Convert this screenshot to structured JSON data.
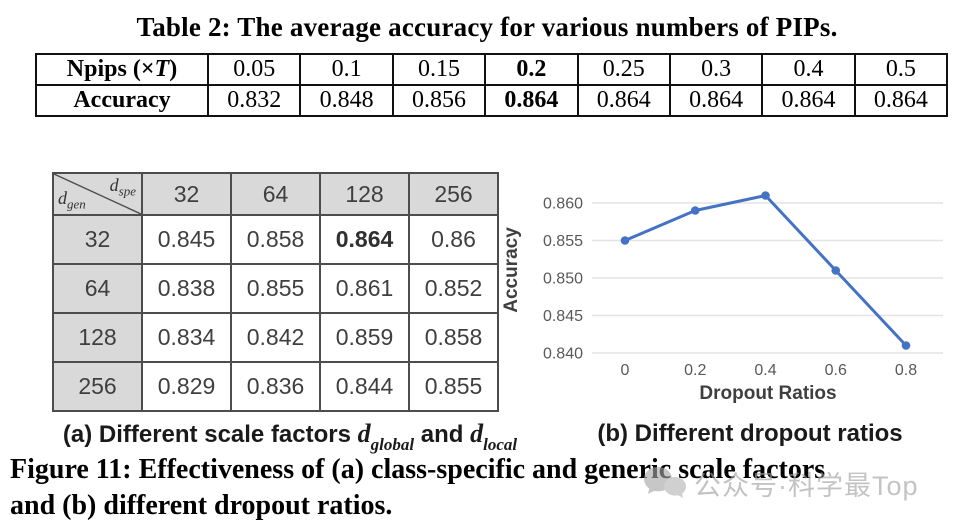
{
  "table2": {
    "title": "Table 2: The average accuracy for various numbers of PIPs.",
    "header_row": {
      "label_name": "Npips",
      "label_open": " (×",
      "label_var": "T",
      "label_close": ")",
      "values": [
        "0.05",
        "0.1",
        "0.15",
        "0.2",
        "0.25",
        "0.3",
        "0.4",
        "0.5"
      ]
    },
    "accuracy_row": {
      "label": "Accuracy",
      "values": [
        "0.832",
        "0.848",
        "0.856",
        "0.864",
        "0.864",
        "0.864",
        "0.864",
        "0.864"
      ]
    },
    "bold_column_index": 3
  },
  "scale_table": {
    "corner": {
      "top_var": "d",
      "top_sub": "spe",
      "bottom_var": "d",
      "bottom_sub": "gen"
    },
    "col_headers": [
      "32",
      "64",
      "128",
      "256"
    ],
    "rows": [
      {
        "header": "32",
        "values": [
          "0.845",
          "0.858",
          "0.864",
          "0.86"
        ]
      },
      {
        "header": "64",
        "values": [
          "0.838",
          "0.855",
          "0.861",
          "0.852"
        ]
      },
      {
        "header": "128",
        "values": [
          "0.834",
          "0.842",
          "0.859",
          "0.858"
        ]
      },
      {
        "header": "256",
        "values": [
          "0.829",
          "0.836",
          "0.844",
          "0.855"
        ]
      }
    ],
    "bold_cell": {
      "row": 0,
      "col": 2,
      "value": "0.864"
    },
    "header_bg": "#d9d9d9"
  },
  "chart_data": {
    "type": "line",
    "x": [
      0,
      0.2,
      0.4,
      0.6,
      0.8
    ],
    "series": [
      {
        "name": "Accuracy",
        "values": [
          0.855,
          0.859,
          0.861,
          0.851,
          0.841
        ]
      }
    ],
    "xlabel": "Dropout Ratios",
    "ylabel": "Accuracy",
    "xtick_labels": [
      "0",
      "0.2",
      "0.4",
      "0.6",
      "0.8"
    ],
    "yticks": [
      0.86,
      0.855,
      0.85,
      0.845,
      0.84
    ],
    "ytick_labels": [
      "0.860",
      "0.855",
      "0.850",
      "0.845",
      "0.840"
    ],
    "xlim": [
      0,
      0.8
    ],
    "ylim": [
      0.84,
      0.86
    ],
    "grid": "horizontal",
    "legend": "none",
    "line_color": "#4472C4",
    "gridline_color": "#e4e4e4"
  },
  "captions": {
    "a": {
      "prefix": "(a) Different scale factors ",
      "var1": "d",
      "sub1": "global",
      "mid": " and ",
      "var2": "d",
      "sub2": "local"
    },
    "b": "(b) Different dropout ratios"
  },
  "figure_caption": {
    "line1": "Figure 11: Effectiveness of (a) class-specific and generic scale factors",
    "line2": "and (b) different dropout ratios."
  },
  "watermark": {
    "text": "公众号·科学最Top",
    "icon": "chat-bubbles-icon",
    "color": "#a0a0a0"
  }
}
